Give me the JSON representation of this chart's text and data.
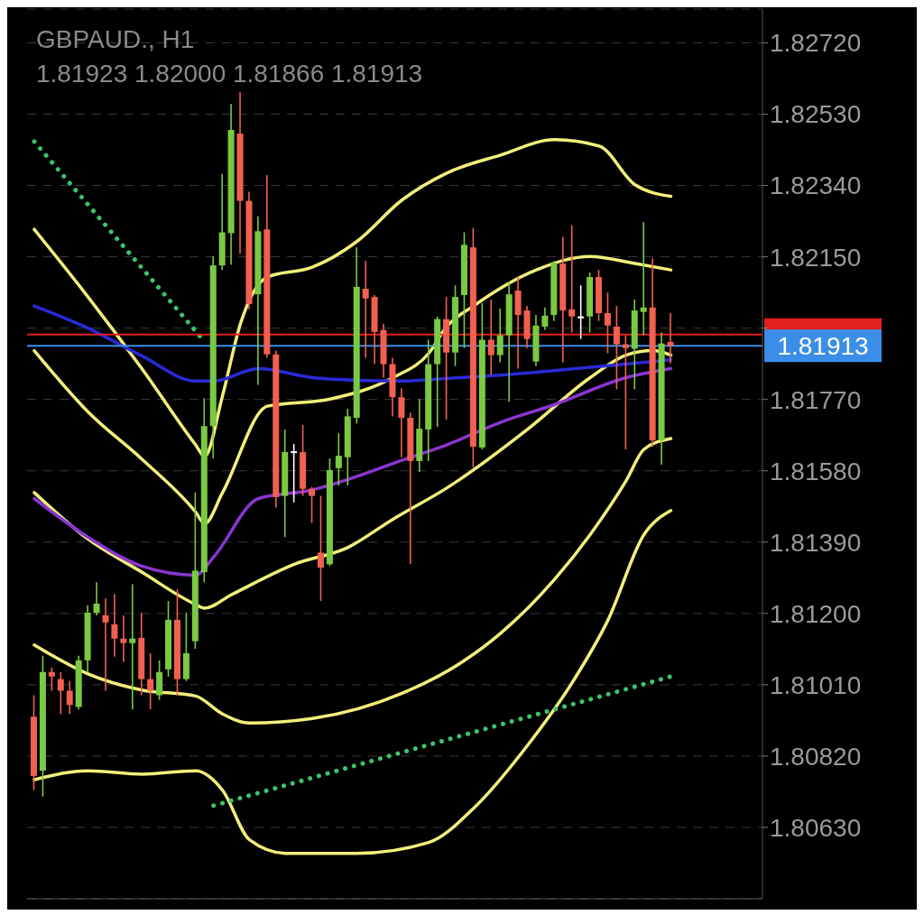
{
  "chart_data": {
    "type": "candlestick",
    "title": "GBPAUD., H1",
    "subtitle": "1.81923 1.82000 1.81866 1.81913",
    "categories": [
      null,
      null,
      null,
      null,
      null,
      null,
      null,
      null,
      null,
      null,
      null,
      null,
      null,
      null,
      null,
      null,
      null,
      null,
      null,
      null,
      null,
      null,
      null,
      null,
      null,
      null,
      null,
      null,
      null,
      null,
      null,
      null,
      null,
      null,
      null,
      null,
      null,
      null,
      null,
      null,
      null,
      null,
      null,
      null,
      null,
      null,
      null,
      null,
      null,
      null,
      null,
      null,
      null,
      null,
      null,
      null,
      null,
      null,
      null,
      null,
      null,
      null,
      null,
      null,
      null,
      null,
      null,
      null,
      null,
      null,
      null,
      null
    ],
    "ohlc": [
      [
        1.80925,
        1.80982,
        1.80729,
        1.80767
      ],
      [
        1.80781,
        1.81087,
        1.80712,
        1.81044
      ],
      [
        1.81044,
        1.81056,
        1.80994,
        1.81032
      ],
      [
        1.81025,
        1.81044,
        1.80932,
        1.80994
      ],
      [
        1.80994,
        1.8102,
        1.80932,
        1.80956
      ],
      [
        1.80951,
        1.81087,
        1.80944,
        1.81075
      ],
      [
        1.81075,
        1.81221,
        1.81044,
        1.81202
      ],
      [
        1.81202,
        1.81283,
        1.81195,
        1.81226
      ],
      [
        1.81195,
        1.8124,
        1.80994,
        1.81176
      ],
      [
        1.81171,
        1.81252,
        1.81085,
        1.81133
      ],
      [
        1.81133,
        1.81195,
        1.81071,
        1.81121
      ],
      [
        1.81121,
        1.81278,
        1.80944,
        1.81133
      ],
      [
        1.81135,
        1.81202,
        1.80982,
        1.81025
      ],
      [
        1.81025,
        1.81094,
        1.80944,
        1.80994
      ],
      [
        1.80982,
        1.81075,
        1.8097,
        1.81044
      ],
      [
        1.81051,
        1.81233,
        1.81032,
        1.81183
      ],
      [
        1.81183,
        1.81264,
        1.80982,
        1.81025
      ],
      [
        1.81025,
        1.81202,
        1.8102,
        1.81094
      ],
      [
        1.81126,
        1.81522,
        1.81106,
        1.81314
      ],
      [
        1.8131,
        1.81773,
        1.81283,
        1.81699
      ],
      [
        1.81699,
        1.82151,
        1.81613,
        1.82127
      ],
      [
        1.82127,
        1.82371,
        1.82115,
        1.82215
      ],
      [
        1.82213,
        1.82557,
        1.82129,
        1.82488
      ],
      [
        1.82478,
        1.82588,
        1.82158,
        1.82299
      ],
      [
        1.82299,
        1.82323,
        1.8201,
        1.82024
      ],
      [
        1.8205,
        1.82258,
        1.81809,
        1.82218
      ],
      [
        1.82223,
        1.82368,
        1.81881,
        1.8189
      ],
      [
        1.8189,
        1.819,
        1.81482,
        1.8151
      ],
      [
        1.81513,
        1.8169,
        1.81403,
        1.8163
      ],
      [
        1.81632,
        1.81651,
        1.81496,
        1.81632
      ],
      [
        1.8163,
        1.81702,
        1.81513,
        1.81532
      ],
      [
        1.81532,
        1.81537,
        1.81441,
        1.81513
      ],
      [
        1.81362,
        1.81513,
        1.81233,
        1.81322
      ],
      [
        1.81331,
        1.81613,
        1.81326,
        1.81582
      ],
      [
        1.81587,
        1.8168,
        1.81541,
        1.8162
      ],
      [
        1.81616,
        1.81745,
        1.81541,
        1.81725
      ],
      [
        1.81721,
        1.82175,
        1.81706,
        1.8207
      ],
      [
        1.82065,
        1.82139,
        1.81881,
        1.82039
      ],
      [
        1.82043,
        1.82048,
        1.81864,
        1.8195
      ],
      [
        1.81955,
        1.81972,
        1.81828,
        1.81864
      ],
      [
        1.81864,
        1.81881,
        1.81725,
        1.81776
      ],
      [
        1.81776,
        1.818,
        1.81616,
        1.81721
      ],
      [
        1.81721,
        1.81735,
        1.81331,
        1.81606
      ],
      [
        1.81606,
        1.81771,
        1.81577,
        1.81692
      ],
      [
        1.8169,
        1.81929,
        1.81606,
        1.81864
      ],
      [
        1.81864,
        1.81991,
        1.81697,
        1.81984
      ],
      [
        1.81984,
        1.82043,
        1.81716,
        1.81895
      ],
      [
        1.81895,
        1.82074,
        1.81859,
        1.82043
      ],
      [
        1.82048,
        1.82215,
        1.81907,
        1.82182
      ],
      [
        1.82175,
        1.82227,
        1.81589,
        1.81644
      ],
      [
        1.81642,
        1.82027,
        1.81637,
        1.81929
      ],
      [
        1.81929,
        1.82036,
        1.81835,
        1.81888
      ],
      [
        1.81888,
        1.82012,
        1.81869,
        1.81941
      ],
      [
        1.81941,
        1.82084,
        1.81764,
        1.8205
      ],
      [
        1.8206,
        1.82098,
        1.81852,
        1.81995
      ],
      [
        1.82007,
        1.82019,
        1.81907,
        1.81931
      ],
      [
        1.81871,
        1.81995,
        1.81859,
        1.81967
      ],
      [
        1.81964,
        1.82015,
        1.81955,
        1.81993
      ],
      [
        1.81995,
        1.82139,
        1.81979,
        1.82134
      ],
      [
        1.82132,
        1.82203,
        1.81869,
        1.82007
      ],
      [
        1.8201,
        1.82234,
        1.81948,
        1.81991
      ],
      [
        1.81991,
        1.82074,
        1.81931,
        1.81991
      ],
      [
        1.81991,
        1.82108,
        1.81948,
        1.82096
      ],
      [
        1.82096,
        1.82115,
        1.81979,
        1.82
      ],
      [
        1.82,
        1.82055,
        1.81893,
        1.81967
      ],
      [
        1.81964,
        1.82019,
        1.81797,
        1.81917
      ],
      [
        1.81917,
        1.81941,
        1.81637,
        1.81907
      ],
      [
        1.81905,
        1.82036,
        1.81797,
        1.82007
      ],
      [
        1.82003,
        1.82242,
        1.81941,
        1.82015
      ],
      [
        1.82015,
        1.82146,
        1.81644,
        1.81661
      ],
      [
        1.81661,
        1.81948,
        1.81596,
        1.81919
      ],
      [
        1.81923,
        1.82,
        1.81866,
        1.81913
      ]
    ],
    "colors": [
      "#f2604f",
      "#7ac943",
      "#f2604f",
      "#f2604f",
      "#f2604f",
      "#7ac943",
      "#7ac943",
      "#7ac943",
      "#f2604f",
      "#f2604f",
      "#f2604f",
      "#7ac943",
      "#f2604f",
      "#f2604f",
      "#7ac943",
      "#7ac943",
      "#f2604f",
      "#7ac943",
      "#7ac943",
      "#7ac943",
      "#7ac943",
      "#7ac943",
      "#7ac943",
      "#f2604f",
      "#f2604f",
      "#7ac943",
      "#f2604f",
      "#f2604f",
      "#7ac943",
      "#ffffff",
      "#f2604f",
      "#f2604f",
      "#f2604f",
      "#7ac943",
      "#7ac943",
      "#7ac943",
      "#7ac943",
      "#f2604f",
      "#f2604f",
      "#f2604f",
      "#f2604f",
      "#f2604f",
      "#f2604f",
      "#7ac943",
      "#7ac943",
      "#7ac943",
      "#f2604f",
      "#7ac943",
      "#7ac943",
      "#f2604f",
      "#7ac943",
      "#f2604f",
      "#7ac943",
      "#7ac943",
      "#f2604f",
      "#f2604f",
      "#7ac943",
      "#7ac943",
      "#7ac943",
      "#f2604f",
      "#f2604f",
      "#ffffff",
      "#7ac943",
      "#f2604f",
      "#f2604f",
      "#f2604f",
      "#f2604f",
      "#7ac943",
      "#7ac943",
      "#f2604f",
      "#7ac943",
      "#f2604f"
    ],
    "series": [
      {
        "type": "line",
        "color": "#f2f07a",
        "line_style": "solid",
        "values": [
          1.82223,
          null,
          null,
          null,
          null,
          null,
          1.82043,
          null,
          null,
          null,
          null,
          null,
          1.81852,
          null,
          null,
          null,
          null,
          null,
          1.81649,
          1.81618,
          null,
          1.8178,
          null,
          1.81972,
          null,
          null,
          1.82096,
          null,
          null,
          null,
          null,
          1.82122,
          null,
          null,
          null,
          null,
          1.82191,
          null,
          null,
          null,
          null,
          1.82301,
          null,
          null,
          null,
          null,
          1.82373,
          null,
          null,
          null,
          null,
          null,
          1.82421,
          null,
          null,
          null,
          null,
          null,
          1.82462,
          null,
          null,
          null,
          null,
          1.82445,
          null,
          null,
          null,
          1.82342,
          null,
          null,
          null,
          1.82311
        ]
      },
      {
        "type": "line",
        "color": "#f2f07a",
        "line_style": "solid",
        "values": [
          1.819,
          null,
          null,
          null,
          null,
          null,
          1.81737,
          null,
          null,
          null,
          null,
          null,
          1.81611,
          null,
          null,
          null,
          null,
          null,
          1.8147,
          1.81439,
          null,
          1.81522,
          null,
          null,
          null,
          null,
          1.81752,
          null,
          null,
          null,
          null,
          null,
          null,
          1.81771,
          null,
          null,
          null,
          null,
          null,
          null,
          1.81828,
          null,
          null,
          null,
          1.81893,
          null,
          1.81964,
          null,
          null,
          1.82019,
          null,
          null,
          null,
          null,
          null,
          null,
          1.82115,
          null,
          null,
          null,
          null,
          null,
          1.82151,
          null,
          null,
          null,
          null,
          1.82132,
          null,
          null,
          null,
          1.82115
        ]
      },
      {
        "type": "line",
        "color": "#f2f07a",
        "line_style": "solid",
        "values": [
          1.81522,
          null,
          null,
          null,
          null,
          null,
          1.81398,
          null,
          null,
          null,
          null,
          null,
          1.8131,
          null,
          null,
          null,
          null,
          null,
          1.81224,
          1.81214,
          null,
          null,
          1.8125,
          null,
          null,
          null,
          null,
          null,
          null,
          1.81331,
          null,
          null,
          null,
          null,
          null,
          1.81376,
          null,
          null,
          null,
          null,
          1.81451,
          null,
          null,
          null,
          null,
          null,
          1.81534,
          null,
          null,
          null,
          null,
          null,
          null,
          null,
          null,
          1.8169,
          null,
          null,
          null,
          null,
          null,
          null,
          1.81828,
          null,
          null,
          null,
          1.81888,
          null,
          null,
          1.819,
          null,
          1.81888
        ]
      },
      {
        "type": "line",
        "color": "#f2f07a",
        "line_style": "solid",
        "values": [
          1.81116,
          null,
          null,
          null,
          null,
          null,
          1.81039,
          null,
          null,
          null,
          null,
          null,
          1.80996,
          null,
          null,
          null,
          null,
          null,
          1.8098,
          null,
          null,
          1.80932,
          null,
          null,
          1.80908,
          null,
          null,
          null,
          null,
          null,
          null,
          1.8092,
          null,
          null,
          null,
          null,
          null,
          null,
          null,
          null,
          null,
          1.80987,
          null,
          null,
          null,
          null,
          null,
          null,
          1.81075,
          null,
          null,
          null,
          1.81147,
          null,
          null,
          null,
          null,
          null,
          1.8129,
          null,
          null,
          null,
          1.8141,
          null,
          null,
          null,
          1.81553,
          null,
          1.81637,
          null,
          null,
          1.81666
        ]
      },
      {
        "type": "line",
        "color": "#f2f07a",
        "line_style": "solid",
        "values": [
          1.80757,
          null,
          null,
          null,
          null,
          null,
          1.80781,
          null,
          null,
          null,
          null,
          null,
          1.80772,
          null,
          null,
          null,
          null,
          null,
          1.80781,
          null,
          null,
          1.80729,
          null,
          null,
          1.80597,
          null,
          null,
          null,
          1.80561,
          null,
          null,
          null,
          null,
          null,
          null,
          null,
          1.80561,
          null,
          null,
          null,
          null,
          null,
          null,
          null,
          1.8059,
          null,
          null,
          null,
          null,
          1.80681,
          null,
          null,
          null,
          null,
          null,
          1.80848,
          null,
          null,
          null,
          null,
          1.81016,
          null,
          null,
          null,
          1.81183,
          null,
          null,
          null,
          1.8141,
          null,
          null,
          1.81474
        ]
      },
      {
        "type": "line",
        "color": "#2a2ad8",
        "line_style": "solid",
        "values": [
          1.82019,
          null,
          null,
          null,
          null,
          null,
          1.8196,
          null,
          null,
          null,
          null,
          null,
          1.81886,
          null,
          null,
          null,
          null,
          null,
          1.81819,
          null,
          1.81819,
          null,
          null,
          null,
          null,
          1.81852,
          null,
          null,
          null,
          null,
          null,
          1.81828,
          null,
          null,
          null,
          null,
          1.81821,
          null,
          null,
          null,
          null,
          1.81819,
          null,
          null,
          null,
          null,
          1.81826,
          null,
          null,
          null,
          null,
          null,
          1.81835,
          null,
          null,
          null,
          null,
          null,
          1.81847,
          null,
          null,
          null,
          null,
          null,
          null,
          null,
          1.81864,
          null,
          null,
          null,
          null,
          1.81876
        ]
      },
      {
        "type": "line",
        "color": "#8a35d0",
        "line_style": "solid",
        "values": [
          1.81506,
          null,
          null,
          null,
          null,
          null,
          1.81403,
          null,
          null,
          null,
          null,
          null,
          1.81326,
          null,
          null,
          null,
          null,
          null,
          1.81302,
          null,
          1.8135,
          null,
          null,
          null,
          null,
          1.81506,
          null,
          null,
          null,
          null,
          null,
          1.81529,
          null,
          null,
          null,
          null,
          1.81565,
          null,
          null,
          null,
          null,
          1.81608,
          null,
          null,
          null,
          null,
          1.81649,
          null,
          null,
          null,
          null,
          null,
          1.81709,
          null,
          null,
          null,
          null,
          null,
          1.81756,
          null,
          null,
          null,
          null,
          null,
          null,
          null,
          1.81828,
          null,
          null,
          null,
          null,
          1.81852
        ]
      },
      {
        "type": "line",
        "color": "#3cc46a",
        "line_style": "dotted",
        "values": [
          1.82457,
          null,
          null,
          null,
          null,
          null,
          null,
          null,
          null,
          null,
          null,
          null,
          null,
          null,
          null,
          null,
          null,
          null,
          null,
          1.81924,
          null,
          null,
          null,
          null,
          null,
          null,
          null,
          null,
          null,
          null,
          null,
          null,
          null,
          null,
          null,
          null,
          null,
          null,
          null,
          null,
          null,
          null,
          null,
          null,
          null,
          null,
          null,
          null,
          null,
          null,
          null,
          null,
          null,
          null,
          null,
          null,
          null,
          null,
          null,
          null,
          null,
          null,
          null,
          null,
          null,
          null,
          null,
          null,
          null,
          null,
          null,
          null
        ]
      },
      {
        "type": "line",
        "color": "#3cc46a",
        "line_style": "dotted",
        "values": [
          null,
          null,
          null,
          null,
          null,
          null,
          null,
          null,
          null,
          null,
          null,
          null,
          null,
          null,
          null,
          null,
          null,
          null,
          null,
          null,
          1.80688,
          null,
          null,
          null,
          null,
          null,
          null,
          null,
          null,
          null,
          null,
          null,
          null,
          null,
          null,
          null,
          null,
          null,
          null,
          null,
          null,
          null,
          null,
          null,
          null,
          null,
          null,
          null,
          null,
          null,
          null,
          null,
          null,
          null,
          null,
          null,
          null,
          null,
          null,
          null,
          null,
          null,
          null,
          null,
          null,
          null,
          null,
          null,
          null,
          null,
          null,
          1.81032
        ]
      }
    ],
    "ylim": [
      1.8044,
      1.8281
    ],
    "yticks": [
      {
        "value": 1.8063,
        "label": "1.80630"
      },
      {
        "value": 1.8082,
        "label": "1.80820"
      },
      {
        "value": 1.8101,
        "label": "1.81010"
      },
      {
        "value": 1.812,
        "label": "1.81200"
      },
      {
        "value": 1.8139,
        "label": "1.81390"
      },
      {
        "value": 1.8158,
        "label": "1.81580"
      },
      {
        "value": 1.8177,
        "label": "1.81770"
      },
      {
        "value": 1.8196,
        "label": null
      },
      {
        "value": 1.8215,
        "label": "1.82150"
      },
      {
        "value": 1.8234,
        "label": "1.82340"
      },
      {
        "value": 1.8253,
        "label": "1.82530"
      },
      {
        "value": 1.8272,
        "label": "1.82720"
      }
    ],
    "tick_labels": "y",
    "grid": "y",
    "ref_lines": [
      {
        "axis": "y",
        "value": 1.81943,
        "label": null,
        "color": "#e01f1f"
      },
      {
        "axis": "y",
        "value": 1.81913,
        "label": "1.81913",
        "color": "#3b8ee8"
      }
    ]
  }
}
